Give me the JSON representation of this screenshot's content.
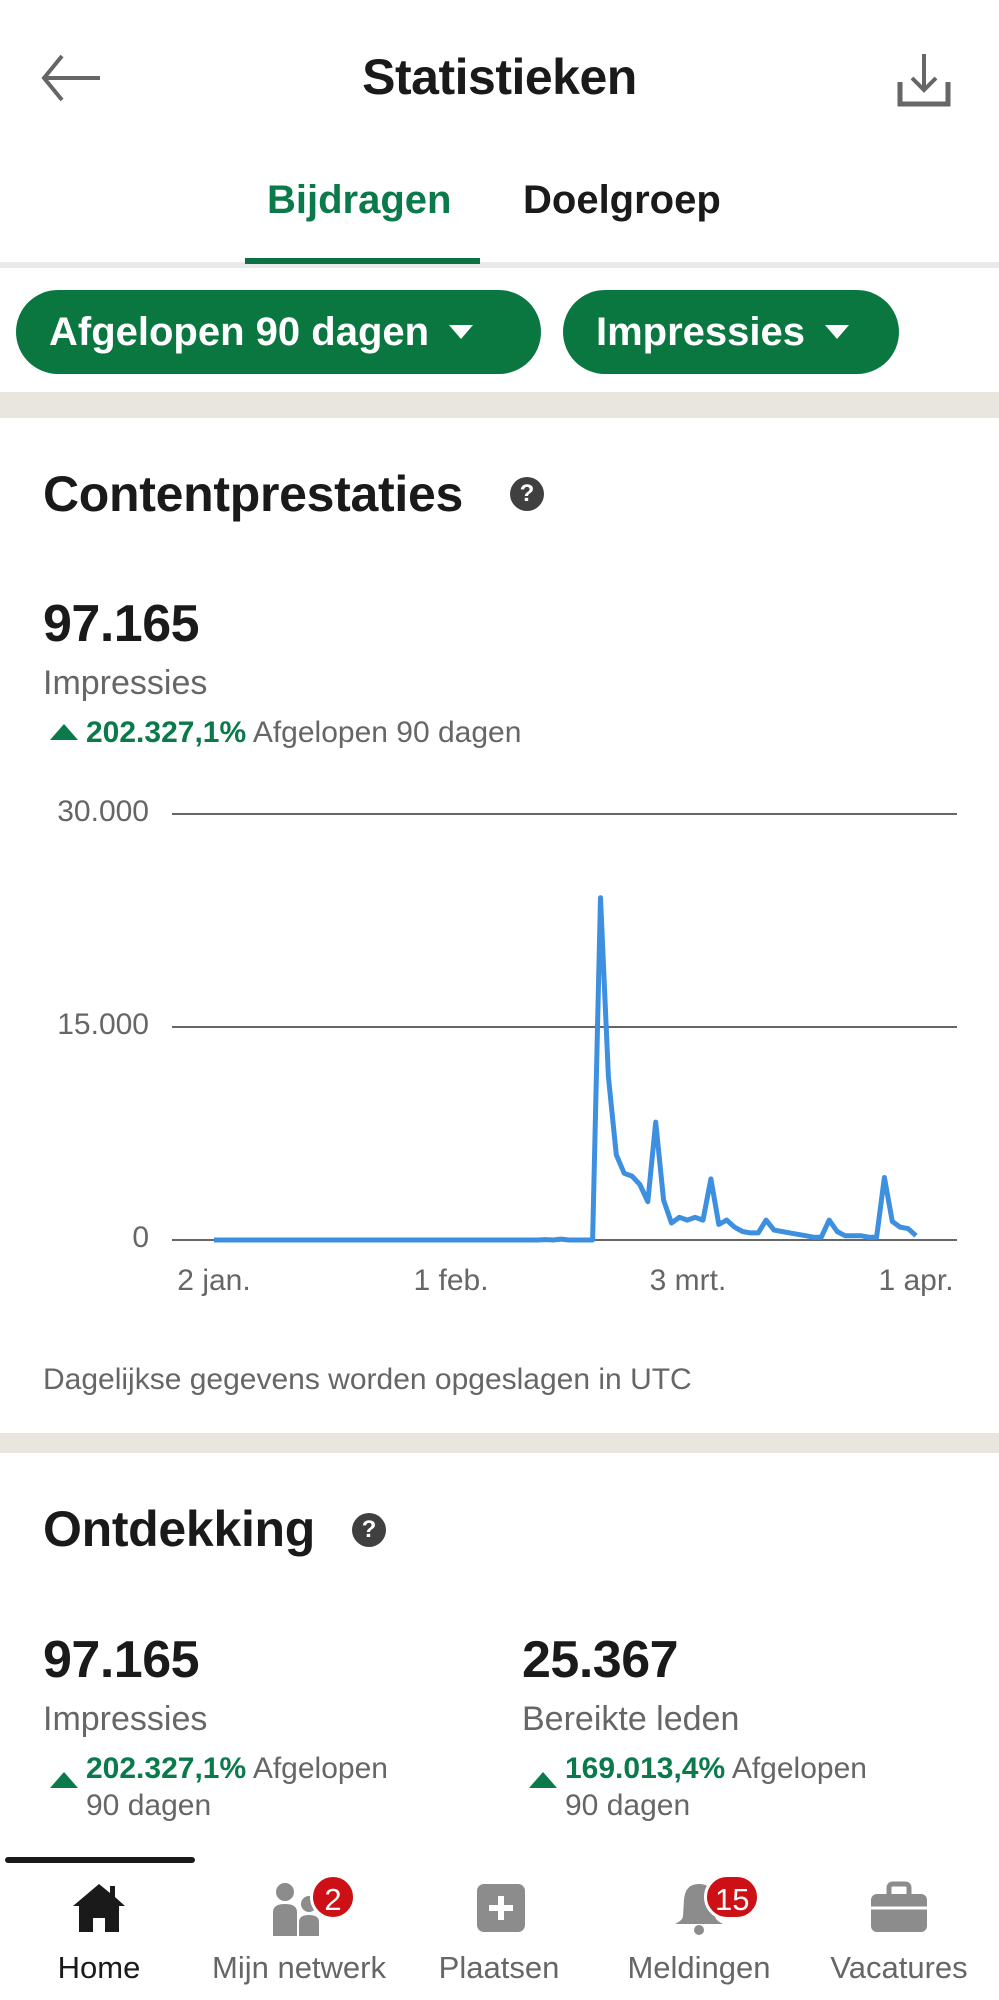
{
  "header": {
    "title": "Statistieken",
    "back_icon": "arrow-left-icon",
    "download_icon": "download-icon"
  },
  "tabs": [
    {
      "label": "Bijdragen",
      "active": true
    },
    {
      "label": "Doelgroep",
      "active": false
    }
  ],
  "filters": {
    "period": "Afgelopen 90 dagen",
    "metric": "Impressies"
  },
  "content_performance": {
    "title": "Contentprestaties",
    "help_icon": "?",
    "value": "97.165",
    "label": "Impressies",
    "change_pct": "202.327,1%",
    "change_period": "Afgelopen 90 dagen",
    "footnote": "Dagelijkse gegevens worden opgeslagen in UTC"
  },
  "discovery": {
    "title": "Ontdekking",
    "help_icon": "?",
    "metrics": [
      {
        "value": "97.165",
        "label": "Impressies",
        "change_pct": "202.327,1%",
        "change_period_1": "Afgelopen",
        "change_period_2": "90 dagen"
      },
      {
        "value": "25.367",
        "label": "Bereikte leden",
        "change_pct": "169.013,4%",
        "change_period_1": "Afgelopen",
        "change_period_2": "90 dagen"
      }
    ]
  },
  "bottom_nav": [
    {
      "label": "Home",
      "icon": "home-icon",
      "active": true,
      "badge": null
    },
    {
      "label": "Mijn netwerk",
      "icon": "network-icon",
      "active": false,
      "badge": "2"
    },
    {
      "label": "Plaatsen",
      "icon": "post-plus-icon",
      "active": false,
      "badge": null
    },
    {
      "label": "Meldingen",
      "icon": "bell-icon",
      "active": false,
      "badge": "15"
    },
    {
      "label": "Vacatures",
      "icon": "briefcase-icon",
      "active": false,
      "badge": null
    }
  ],
  "colors": {
    "brand_green": "#09773f",
    "positive_green": "#0a7a4a",
    "line_blue": "#3d8fe0",
    "badge_red": "#cc1016",
    "divider_gray": "#e8e6df"
  },
  "chart_data": {
    "type": "line",
    "title": "Contentprestaties - Impressies",
    "xlabel": "",
    "ylabel": "Impressies",
    "ylim": [
      0,
      30000
    ],
    "yticks": [
      "0",
      "15.000",
      "30.000"
    ],
    "ytick_values": [
      0,
      15000,
      30000
    ],
    "xtick_labels": [
      "2 jan.",
      "1 feb.",
      "3 mrt.",
      "1 apr."
    ],
    "xtick_day_index": [
      0,
      30,
      60,
      89
    ],
    "grid": true,
    "legend": null,
    "series": [
      {
        "name": "Impressies",
        "color": "#3d8fe0",
        "values": [
          0,
          0,
          0,
          0,
          0,
          0,
          0,
          0,
          0,
          0,
          0,
          0,
          0,
          0,
          0,
          0,
          0,
          0,
          0,
          0,
          0,
          0,
          0,
          0,
          0,
          0,
          0,
          0,
          0,
          0,
          0,
          0,
          0,
          0,
          0,
          0,
          0,
          0,
          0,
          0,
          0,
          0,
          30,
          0,
          60,
          0,
          0,
          0,
          0,
          24100,
          11500,
          6000,
          4700,
          4500,
          3900,
          2700,
          8300,
          2800,
          1200,
          1600,
          1400,
          1600,
          1400,
          4300,
          1100,
          1400,
          900,
          600,
          500,
          500,
          1400,
          700,
          600,
          500,
          400,
          300,
          200,
          200,
          1400,
          600,
          300,
          300,
          300,
          200,
          200,
          4400,
          1300,
          900,
          800,
          300
        ]
      }
    ]
  }
}
